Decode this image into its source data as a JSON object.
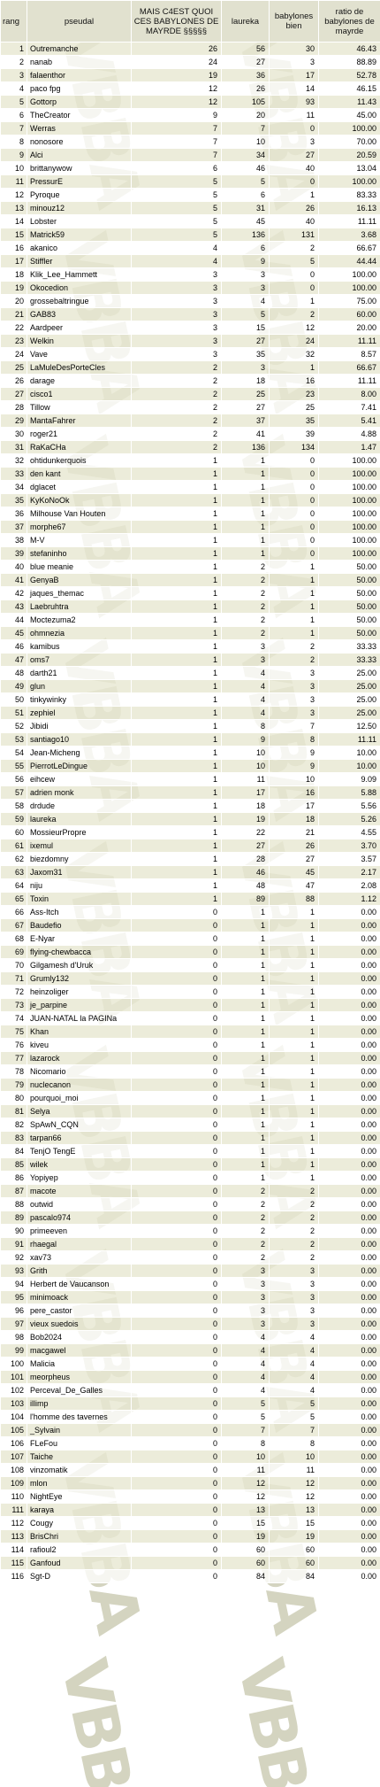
{
  "watermark": {
    "text": "VBBA",
    "color": "#d4d4c0"
  },
  "colors": {
    "header_bg": "#e1e1cf",
    "row_odd": "#e8e8d2",
    "row_even": "#ffffff"
  },
  "columns": {
    "rang": "rang",
    "pseudo": "pseudal",
    "mais": "MAIS C4EST QUOI CES BABYLONES DE MAYRDE §§§§§",
    "laureka": "laureka",
    "babylones": "babylones bien",
    "ratio": "ratio de babylones de mayrde"
  },
  "rows": [
    [
      "1",
      "Outremanche",
      "26",
      "56",
      "30",
      "46.43"
    ],
    [
      "2",
      "nanab",
      "24",
      "27",
      "3",
      "88.89"
    ],
    [
      "3",
      "falaenthor",
      "19",
      "36",
      "17",
      "52.78"
    ],
    [
      "4",
      "paco fpg",
      "12",
      "26",
      "14",
      "46.15"
    ],
    [
      "5",
      "Gottorp",
      "12",
      "105",
      "93",
      "11.43"
    ],
    [
      "6",
      "TheCreator",
      "9",
      "20",
      "11",
      "45.00"
    ],
    [
      "7",
      "Werras",
      "7",
      "7",
      "0",
      "100.00"
    ],
    [
      "8",
      "nonosore",
      "7",
      "10",
      "3",
      "70.00"
    ],
    [
      "9",
      "Alci",
      "7",
      "34",
      "27",
      "20.59"
    ],
    [
      "10",
      "brittanywow",
      "6",
      "46",
      "40",
      "13.04"
    ],
    [
      "11",
      "PressurE",
      "5",
      "5",
      "0",
      "100.00"
    ],
    [
      "12",
      "Pyroque",
      "5",
      "6",
      "1",
      "83.33"
    ],
    [
      "13",
      "minouz12",
      "5",
      "31",
      "26",
      "16.13"
    ],
    [
      "14",
      "Lobster",
      "5",
      "45",
      "40",
      "11.11"
    ],
    [
      "15",
      "Matrick59",
      "5",
      "136",
      "131",
      "3.68"
    ],
    [
      "16",
      "akanico",
      "4",
      "6",
      "2",
      "66.67"
    ],
    [
      "17",
      "Stiffler",
      "4",
      "9",
      "5",
      "44.44"
    ],
    [
      "18",
      "Klik_Lee_Hammett",
      "3",
      "3",
      "0",
      "100.00"
    ],
    [
      "19",
      "Okocedion",
      "3",
      "3",
      "0",
      "100.00"
    ],
    [
      "20",
      "grossebaltringue",
      "3",
      "4",
      "1",
      "75.00"
    ],
    [
      "21",
      "GAB83",
      "3",
      "5",
      "2",
      "60.00"
    ],
    [
      "22",
      "Aardpeer",
      "3",
      "15",
      "12",
      "20.00"
    ],
    [
      "23",
      "Welkin",
      "3",
      "27",
      "24",
      "11.11"
    ],
    [
      "24",
      "Vave",
      "3",
      "35",
      "32",
      "8.57"
    ],
    [
      "25",
      "LaMuleDesPorteCles",
      "2",
      "3",
      "1",
      "66.67"
    ],
    [
      "26",
      "darage",
      "2",
      "18",
      "16",
      "11.11"
    ],
    [
      "27",
      "cisco1",
      "2",
      "25",
      "23",
      "8.00"
    ],
    [
      "28",
      "Tillow",
      "2",
      "27",
      "25",
      "7.41"
    ],
    [
      "29",
      "MantaFahrer",
      "2",
      "37",
      "35",
      "5.41"
    ],
    [
      "30",
      "roger21",
      "2",
      "41",
      "39",
      "4.88"
    ],
    [
      "31",
      "RaKaCHa",
      "2",
      "136",
      "134",
      "1.47"
    ],
    [
      "32",
      "ohtidunkerquois",
      "1",
      "1",
      "0",
      "100.00"
    ],
    [
      "33",
      "den kant",
      "1",
      "1",
      "0",
      "100.00"
    ],
    [
      "34",
      "dglacet",
      "1",
      "1",
      "0",
      "100.00"
    ],
    [
      "35",
      "KyKoNoOk",
      "1",
      "1",
      "0",
      "100.00"
    ],
    [
      "36",
      "Milhouse Van Houten",
      "1",
      "1",
      "0",
      "100.00"
    ],
    [
      "37",
      "morphe67",
      "1",
      "1",
      "0",
      "100.00"
    ],
    [
      "38",
      "M-V",
      "1",
      "1",
      "0",
      "100.00"
    ],
    [
      "39",
      "stefaninho",
      "1",
      "1",
      "0",
      "100.00"
    ],
    [
      "40",
      "blue meanie",
      "1",
      "2",
      "1",
      "50.00"
    ],
    [
      "41",
      "GenyaB",
      "1",
      "2",
      "1",
      "50.00"
    ],
    [
      "42",
      "jaques_themac",
      "1",
      "2",
      "1",
      "50.00"
    ],
    [
      "43",
      "Laebruhtra",
      "1",
      "2",
      "1",
      "50.00"
    ],
    [
      "44",
      "Moctezuma2",
      "1",
      "2",
      "1",
      "50.00"
    ],
    [
      "45",
      "ohmnezia",
      "1",
      "2",
      "1",
      "50.00"
    ],
    [
      "46",
      "kamibus",
      "1",
      "3",
      "2",
      "33.33"
    ],
    [
      "47",
      "oms7",
      "1",
      "3",
      "2",
      "33.33"
    ],
    [
      "48",
      "darth21",
      "1",
      "4",
      "3",
      "25.00"
    ],
    [
      "49",
      "glun",
      "1",
      "4",
      "3",
      "25.00"
    ],
    [
      "50",
      "tinkywinky",
      "1",
      "4",
      "3",
      "25.00"
    ],
    [
      "51",
      "zephiel",
      "1",
      "4",
      "3",
      "25.00"
    ],
    [
      "52",
      "Jibidi",
      "1",
      "8",
      "7",
      "12.50"
    ],
    [
      "53",
      "santiago10",
      "1",
      "9",
      "8",
      "11.11"
    ],
    [
      "54",
      "Jean-Micheng",
      "1",
      "10",
      "9",
      "10.00"
    ],
    [
      "55",
      "PierrotLeDingue",
      "1",
      "10",
      "9",
      "10.00"
    ],
    [
      "56",
      "eihcew",
      "1",
      "11",
      "10",
      "9.09"
    ],
    [
      "57",
      "adrien monk",
      "1",
      "17",
      "16",
      "5.88"
    ],
    [
      "58",
      "drdude",
      "1",
      "18",
      "17",
      "5.56"
    ],
    [
      "59",
      "laureka",
      "1",
      "19",
      "18",
      "5.26"
    ],
    [
      "60",
      "MossieurPropre",
      "1",
      "22",
      "21",
      "4.55"
    ],
    [
      "61",
      "ixemul",
      "1",
      "27",
      "26",
      "3.70"
    ],
    [
      "62",
      "biezdomny",
      "1",
      "28",
      "27",
      "3.57"
    ],
    [
      "63",
      "Jaxom31",
      "1",
      "46",
      "45",
      "2.17"
    ],
    [
      "64",
      "niju",
      "1",
      "48",
      "47",
      "2.08"
    ],
    [
      "65",
      "Toxin",
      "1",
      "89",
      "88",
      "1.12"
    ],
    [
      "66",
      "Ass-Itch",
      "0",
      "1",
      "1",
      "0.00"
    ],
    [
      "67",
      "Baudefio",
      "0",
      "1",
      "1",
      "0.00"
    ],
    [
      "68",
      "E-Nyar",
      "0",
      "1",
      "1",
      "0.00"
    ],
    [
      "69",
      "flying-chewbacca",
      "0",
      "1",
      "1",
      "0.00"
    ],
    [
      "70",
      "Gilgamesh d'Uruk",
      "0",
      "1",
      "1",
      "0.00"
    ],
    [
      "71",
      "Grumly132",
      "0",
      "1",
      "1",
      "0.00"
    ],
    [
      "72",
      "heinzoliger",
      "0",
      "1",
      "1",
      "0.00"
    ],
    [
      "73",
      "je_parpine",
      "0",
      "1",
      "1",
      "0.00"
    ],
    [
      "74",
      "JUAN-NATAL la PAGINa",
      "0",
      "1",
      "1",
      "0.00"
    ],
    [
      "75",
      "Khan",
      "0",
      "1",
      "1",
      "0.00"
    ],
    [
      "76",
      "kiveu",
      "0",
      "1",
      "1",
      "0.00"
    ],
    [
      "77",
      "lazarock",
      "0",
      "1",
      "1",
      "0.00"
    ],
    [
      "78",
      "Nicomario",
      "0",
      "1",
      "1",
      "0.00"
    ],
    [
      "79",
      "nuclecanon",
      "0",
      "1",
      "1",
      "0.00"
    ],
    [
      "80",
      "pourquoi_moi",
      "0",
      "1",
      "1",
      "0.00"
    ],
    [
      "81",
      "Selya",
      "0",
      "1",
      "1",
      "0.00"
    ],
    [
      "82",
      "SpAwN_CQN",
      "0",
      "1",
      "1",
      "0.00"
    ],
    [
      "83",
      "tarpan66",
      "0",
      "1",
      "1",
      "0.00"
    ],
    [
      "84",
      "TenjO TengE",
      "0",
      "1",
      "1",
      "0.00"
    ],
    [
      "85",
      "wilek",
      "0",
      "1",
      "1",
      "0.00"
    ],
    [
      "86",
      "Yopiyep",
      "0",
      "1",
      "1",
      "0.00"
    ],
    [
      "87",
      "macote",
      "0",
      "2",
      "2",
      "0.00"
    ],
    [
      "88",
      "outwid",
      "0",
      "2",
      "2",
      "0.00"
    ],
    [
      "89",
      "pascalo974",
      "0",
      "2",
      "2",
      "0.00"
    ],
    [
      "90",
      "primeeven",
      "0",
      "2",
      "2",
      "0.00"
    ],
    [
      "91",
      "rhaegal",
      "0",
      "2",
      "2",
      "0.00"
    ],
    [
      "92",
      "xav73",
      "0",
      "2",
      "2",
      "0.00"
    ],
    [
      "93",
      "Grith",
      "0",
      "3",
      "3",
      "0.00"
    ],
    [
      "94",
      "Herbert de Vaucanson",
      "0",
      "3",
      "3",
      "0.00"
    ],
    [
      "95",
      "minimoack",
      "0",
      "3",
      "3",
      "0.00"
    ],
    [
      "96",
      "pere_castor",
      "0",
      "3",
      "3",
      "0.00"
    ],
    [
      "97",
      "vieux suedois",
      "0",
      "3",
      "3",
      "0.00"
    ],
    [
      "98",
      "Bob2024",
      "0",
      "4",
      "4",
      "0.00"
    ],
    [
      "99",
      "macgawel",
      "0",
      "4",
      "4",
      "0.00"
    ],
    [
      "100",
      "Malicia",
      "0",
      "4",
      "4",
      "0.00"
    ],
    [
      "101",
      "meorpheus",
      "0",
      "4",
      "4",
      "0.00"
    ],
    [
      "102",
      "Perceval_De_Galles",
      "0",
      "4",
      "4",
      "0.00"
    ],
    [
      "103",
      "illimp",
      "0",
      "5",
      "5",
      "0.00"
    ],
    [
      "104",
      "l'homme des tavernes",
      "0",
      "5",
      "5",
      "0.00"
    ],
    [
      "105",
      "_Sylvain",
      "0",
      "7",
      "7",
      "0.00"
    ],
    [
      "106",
      "FLeFou",
      "0",
      "8",
      "8",
      "0.00"
    ],
    [
      "107",
      "Taiche",
      "0",
      "10",
      "10",
      "0.00"
    ],
    [
      "108",
      "vinzomatik",
      "0",
      "11",
      "11",
      "0.00"
    ],
    [
      "109",
      "mlon",
      "0",
      "12",
      "12",
      "0.00"
    ],
    [
      "110",
      "NightEye",
      "0",
      "12",
      "12",
      "0.00"
    ],
    [
      "111",
      "karaya",
      "0",
      "13",
      "13",
      "0.00"
    ],
    [
      "112",
      "Cougy",
      "0",
      "15",
      "15",
      "0.00"
    ],
    [
      "113",
      "BrisChri",
      "0",
      "19",
      "19",
      "0.00"
    ],
    [
      "114",
      "rafioul2",
      "0",
      "60",
      "60",
      "0.00"
    ],
    [
      "115",
      "Ganfoud",
      "0",
      "60",
      "60",
      "0.00"
    ],
    [
      "116",
      "Sgt-D",
      "0",
      "84",
      "84",
      "0.00"
    ]
  ]
}
